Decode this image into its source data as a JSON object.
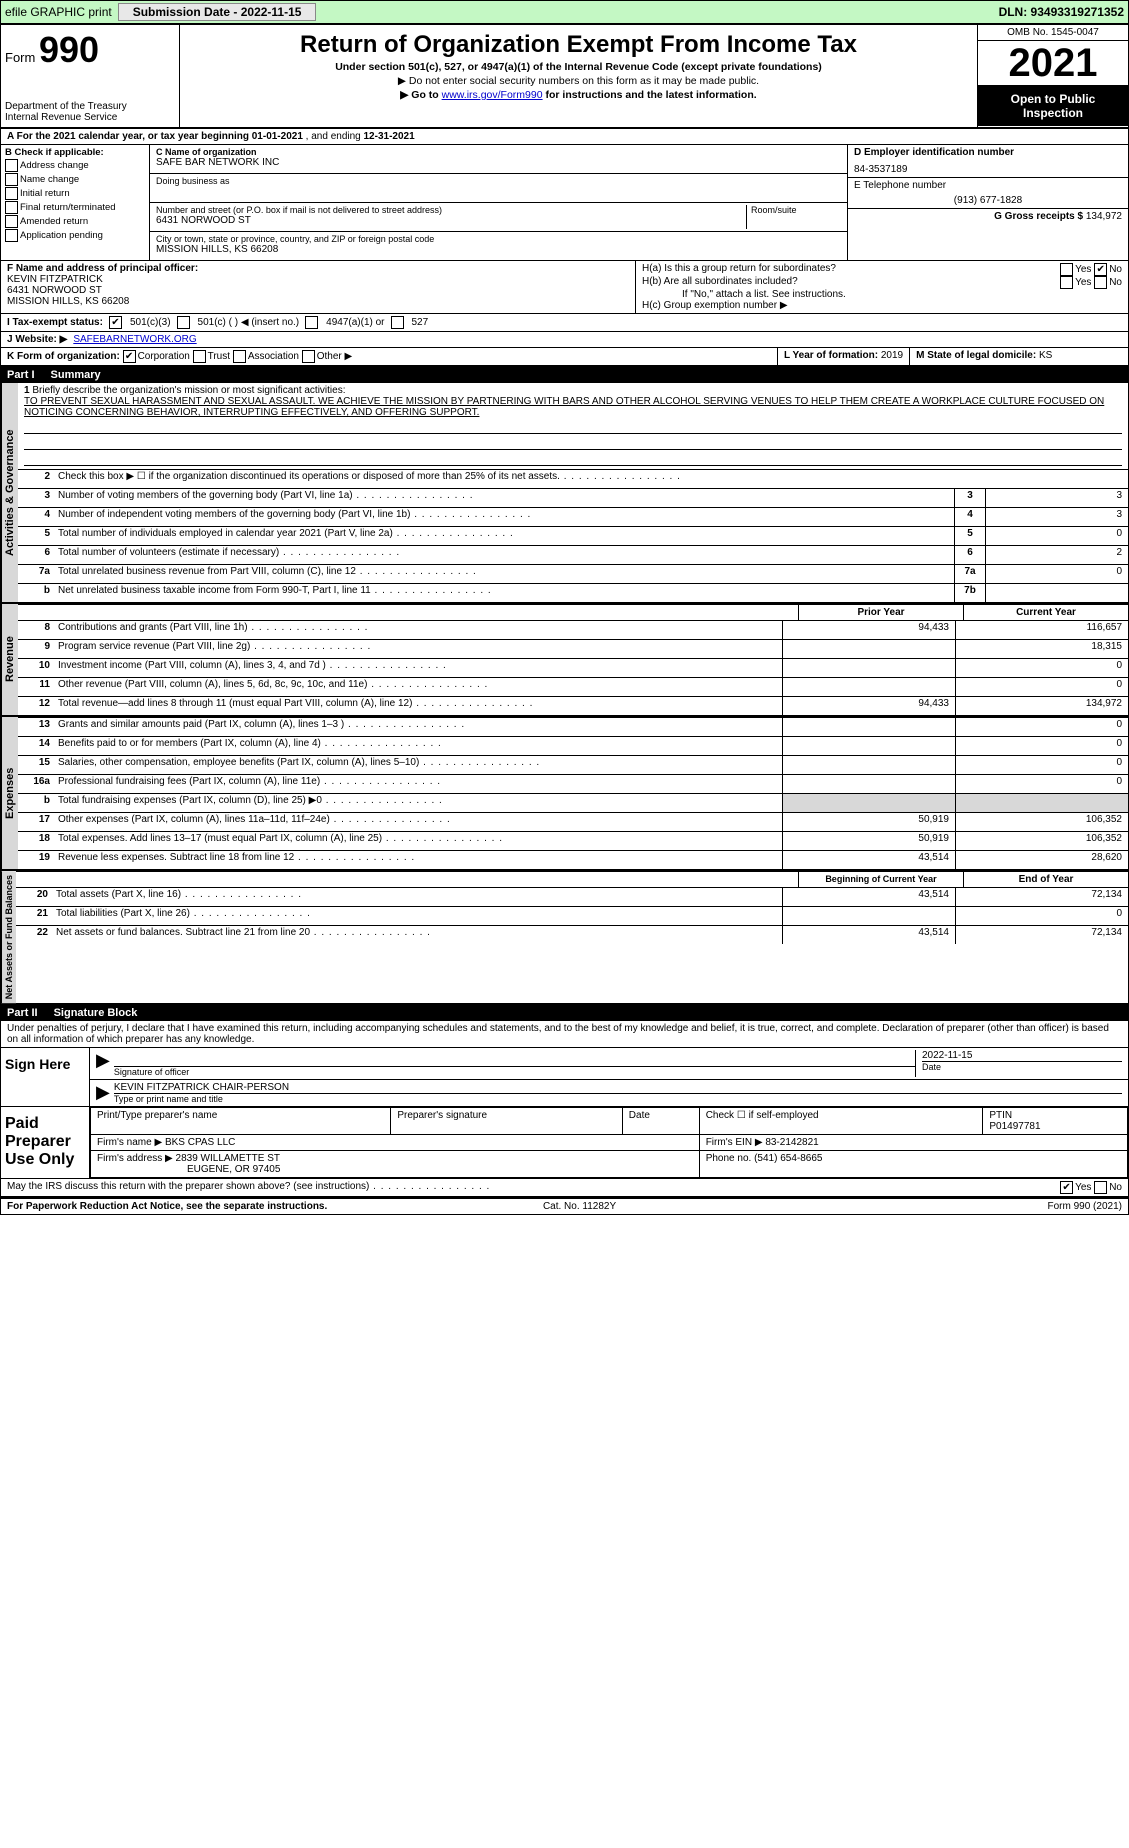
{
  "topbar": {
    "efile": "efile GRAPHIC print",
    "submission_label": "Submission Date - 2022-11-15",
    "dln": "DLN: 93493319271352"
  },
  "header": {
    "form_prefix": "Form",
    "form_number": "990",
    "dept1": "Department of the Treasury",
    "dept2": "Internal Revenue Service",
    "title": "Return of Organization Exempt From Income Tax",
    "subtitle": "Under section 501(c), 527, or 4947(a)(1) of the Internal Revenue Code (except private foundations)",
    "note1": "▶ Do not enter social security numbers on this form as it may be made public.",
    "note2_pre": "▶ Go to ",
    "note2_link": "www.irs.gov/Form990",
    "note2_post": " for instructions and the latest information.",
    "omb": "OMB No. 1545-0047",
    "year": "2021",
    "public": "Open to Public Inspection"
  },
  "rowA": {
    "text_pre": "A For the 2021 calendar year, or tax year beginning ",
    "begin": "01-01-2021",
    "mid": " , and ending ",
    "end": "12-31-2021"
  },
  "boxB": {
    "title": "B Check if applicable:",
    "items": [
      "Address change",
      "Name change",
      "Initial return",
      "Final return/terminated",
      "Amended return",
      "Application pending"
    ]
  },
  "boxC": {
    "label_name": "C Name of organization",
    "name": "SAFE BAR NETWORK INC",
    "label_dba": "Doing business as",
    "label_addr": "Number and street (or P.O. box if mail is not delivered to street address)",
    "label_room": "Room/suite",
    "addr": "6431 NORWOOD ST",
    "label_city": "City or town, state or province, country, and ZIP or foreign postal code",
    "city": "MISSION HILLS, KS  66208"
  },
  "boxD": {
    "label": "D Employer identification number",
    "value": "84-3537189"
  },
  "boxE": {
    "label": "E Telephone number",
    "value": "(913) 677-1828"
  },
  "boxG": {
    "label": "G Gross receipts $",
    "value": "134,972"
  },
  "boxF": {
    "label": "F  Name and address of principal officer:",
    "name": "KEVIN FITZPATRICK",
    "addr1": "6431 NORWOOD ST",
    "addr2": "MISSION HILLS, KS  66208"
  },
  "boxH": {
    "a": "H(a)  Is this a group return for subordinates?",
    "b": "H(b)  Are all subordinates included?",
    "bnote": "If \"No,\" attach a list. See instructions.",
    "c": "H(c)  Group exemption number ▶",
    "yes": "Yes",
    "no": "No"
  },
  "boxI": {
    "label": "I   Tax-exempt status:",
    "opts": [
      "501(c)(3)",
      "501(c) (    ) ◀ (insert no.)",
      "4947(a)(1) or",
      "527"
    ]
  },
  "boxJ": {
    "label": "J   Website: ▶",
    "value": "SAFEBARNETWORK.ORG"
  },
  "boxK": {
    "label": "K Form of organization:",
    "opts": [
      "Corporation",
      "Trust",
      "Association",
      "Other ▶"
    ]
  },
  "boxL": {
    "label": "L Year of formation:",
    "value": "2019"
  },
  "boxM": {
    "label": "M State of legal domicile:",
    "value": "KS"
  },
  "part1": {
    "num": "Part I",
    "title": "Summary"
  },
  "mission": {
    "num": "1",
    "label": "Briefly describe the organization's mission or most significant activities:",
    "text": "TO PREVENT SEXUAL HARASSMENT AND SEXUAL ASSAULT. WE ACHIEVE THE MISSION BY PARTNERING WITH BARS AND OTHER ALCOHOL SERVING VENUES TO HELP THEM CREATE A WORKPLACE CULTURE FOCUSED ON NOTICING CONCERNING BEHAVIOR, INTERRUPTING EFFECTIVELY, AND OFFERING SUPPORT."
  },
  "band": {
    "ag": "Activities & Governance",
    "rev": "Revenue",
    "exp": "Expenses",
    "na": "Net Assets or Fund Balances"
  },
  "lines_ag": [
    {
      "n": "2",
      "d": "Check this box ▶ ☐  if the organization discontinued its operations or disposed of more than 25% of its net assets.",
      "box": "",
      "v": ""
    },
    {
      "n": "3",
      "d": "Number of voting members of the governing body (Part VI, line 1a)",
      "box": "3",
      "v": "3"
    },
    {
      "n": "4",
      "d": "Number of independent voting members of the governing body (Part VI, line 1b)",
      "box": "4",
      "v": "3"
    },
    {
      "n": "5",
      "d": "Total number of individuals employed in calendar year 2021 (Part V, line 2a)",
      "box": "5",
      "v": "0"
    },
    {
      "n": "6",
      "d": "Total number of volunteers (estimate if necessary)",
      "box": "6",
      "v": "2"
    },
    {
      "n": "7a",
      "d": "Total unrelated business revenue from Part VIII, column (C), line 12",
      "box": "7a",
      "v": "0"
    },
    {
      "n": "b",
      "d": "Net unrelated business taxable income from Form 990-T, Part I, line 11",
      "box": "7b",
      "v": ""
    }
  ],
  "colhdr": {
    "prior": "Prior Year",
    "current": "Current Year"
  },
  "lines_rev": [
    {
      "n": "8",
      "d": "Contributions and grants (Part VIII, line 1h)",
      "p": "94,433",
      "c": "116,657"
    },
    {
      "n": "9",
      "d": "Program service revenue (Part VIII, line 2g)",
      "p": "",
      "c": "18,315"
    },
    {
      "n": "10",
      "d": "Investment income (Part VIII, column (A), lines 3, 4, and 7d )",
      "p": "",
      "c": "0"
    },
    {
      "n": "11",
      "d": "Other revenue (Part VIII, column (A), lines 5, 6d, 8c, 9c, 10c, and 11e)",
      "p": "",
      "c": "0"
    },
    {
      "n": "12",
      "d": "Total revenue—add lines 8 through 11 (must equal Part VIII, column (A), line 12)",
      "p": "94,433",
      "c": "134,972"
    }
  ],
  "lines_exp": [
    {
      "n": "13",
      "d": "Grants and similar amounts paid (Part IX, column (A), lines 1–3 )",
      "p": "",
      "c": "0"
    },
    {
      "n": "14",
      "d": "Benefits paid to or for members (Part IX, column (A), line 4)",
      "p": "",
      "c": "0"
    },
    {
      "n": "15",
      "d": "Salaries, other compensation, employee benefits (Part IX, column (A), lines 5–10)",
      "p": "",
      "c": "0"
    },
    {
      "n": "16a",
      "d": "Professional fundraising fees (Part IX, column (A), line 11e)",
      "p": "",
      "c": "0"
    },
    {
      "n": "b",
      "d": "Total fundraising expenses (Part IX, column (D), line 25) ▶0",
      "p": "SH",
      "c": "SH"
    },
    {
      "n": "17",
      "d": "Other expenses (Part IX, column (A), lines 11a–11d, 11f–24e)",
      "p": "50,919",
      "c": "106,352"
    },
    {
      "n": "18",
      "d": "Total expenses. Add lines 13–17 (must equal Part IX, column (A), line 25)",
      "p": "50,919",
      "c": "106,352"
    },
    {
      "n": "19",
      "d": "Revenue less expenses. Subtract line 18 from line 12",
      "p": "43,514",
      "c": "28,620"
    }
  ],
  "colhdr2": {
    "prior": "Beginning of Current Year",
    "current": "End of Year"
  },
  "lines_na": [
    {
      "n": "20",
      "d": "Total assets (Part X, line 16)",
      "p": "43,514",
      "c": "72,134"
    },
    {
      "n": "21",
      "d": "Total liabilities (Part X, line 26)",
      "p": "",
      "c": "0"
    },
    {
      "n": "22",
      "d": "Net assets or fund balances. Subtract line 21 from line 20",
      "p": "43,514",
      "c": "72,134"
    }
  ],
  "part2": {
    "num": "Part II",
    "title": "Signature Block"
  },
  "jurat": "Under penalties of perjury, I declare that I have examined this return, including accompanying schedules and statements, and to the best of my knowledge and belief, it is true, correct, and complete. Declaration of preparer (other than officer) is based on all information of which preparer has any knowledge.",
  "sign": {
    "here": "Sign Here",
    "sig_label": "Signature of officer",
    "date_label": "Date",
    "date": "2022-11-15",
    "name": "KEVIN FITZPATRICK  CHAIR-PERSON",
    "name_label": "Type or print name and title"
  },
  "paid": {
    "title": "Paid Preparer Use Only",
    "h1": "Print/Type preparer's name",
    "h2": "Preparer's signature",
    "h3": "Date",
    "h4_pre": "Check ☐ if self-employed",
    "ptin_l": "PTIN",
    "ptin": "P01497781",
    "firm_l": "Firm's name    ▶",
    "firm": "BKS CPAS LLC",
    "ein_l": "Firm's EIN ▶",
    "ein": "83-2142821",
    "addr_l": "Firm's address ▶",
    "addr1": "2839 WILLAMETTE ST",
    "addr2": "EUGENE, OR  97405",
    "phone_l": "Phone no.",
    "phone": "(541) 654-8665"
  },
  "discuss": {
    "q": "May the IRS discuss this return with the preparer shown above? (see instructions)",
    "yes": "Yes",
    "no": "No"
  },
  "footer": {
    "left": "For Paperwork Reduction Act Notice, see the separate instructions.",
    "mid": "Cat. No. 11282Y",
    "right": "Form 990 (2021)"
  }
}
